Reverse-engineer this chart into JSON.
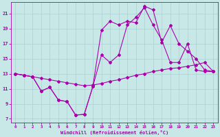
{
  "xlabel": "Windchill (Refroidissement éolien,°C)",
  "xlim": [
    -0.5,
    23.5
  ],
  "ylim": [
    6.5,
    22.5
  ],
  "xticks": [
    0,
    1,
    2,
    3,
    4,
    5,
    6,
    7,
    8,
    9,
    10,
    11,
    12,
    13,
    14,
    15,
    16,
    17,
    18,
    19,
    20,
    21,
    22,
    23
  ],
  "yticks": [
    7,
    9,
    11,
    13,
    15,
    17,
    19,
    21
  ],
  "bg_color": "#c8e8e8",
  "line_color": "#aa00aa",
  "grid_color": "#aacfcf",
  "line1_x": [
    0,
    1,
    2,
    3,
    4,
    5,
    6,
    7,
    8,
    9,
    10,
    11,
    12,
    13,
    14,
    15,
    16,
    17,
    18,
    19,
    20,
    21,
    22,
    23
  ],
  "line1_y": [
    13,
    12.8,
    12.6,
    12.4,
    12.2,
    12.0,
    11.8,
    11.6,
    11.4,
    11.5,
    11.7,
    12.0,
    12.2,
    12.5,
    12.8,
    13.0,
    13.3,
    13.5,
    13.7,
    13.8,
    14.0,
    14.2,
    14.5,
    13.3
  ],
  "line2_x": [
    0,
    1,
    2,
    3,
    4,
    5,
    6,
    7,
    8,
    9,
    10,
    11,
    12,
    13,
    14,
    15,
    16,
    17,
    18,
    19,
    20,
    21,
    22,
    23
  ],
  "line2_y": [
    13,
    12.8,
    12.6,
    10.7,
    11.2,
    9.5,
    9.3,
    7.5,
    7.6,
    11.3,
    18.8,
    20.0,
    19.5,
    20.0,
    19.8,
    22.0,
    21.5,
    17.2,
    19.4,
    17.0,
    16.0,
    15.0,
    13.5,
    13.3
  ],
  "line3_x": [
    0,
    1,
    2,
    3,
    4,
    5,
    6,
    7,
    8,
    9,
    10,
    11,
    12,
    13,
    14,
    15,
    16,
    17,
    18,
    19,
    20,
    21,
    22,
    23
  ],
  "line3_y": [
    13,
    12.8,
    12.6,
    10.7,
    11.2,
    9.5,
    9.3,
    7.5,
    7.6,
    11.3,
    15.5,
    14.5,
    15.5,
    19.5,
    20.5,
    21.8,
    19.5,
    17.5,
    14.5,
    14.5,
    17.0,
    13.5,
    13.3,
    13.3
  ]
}
